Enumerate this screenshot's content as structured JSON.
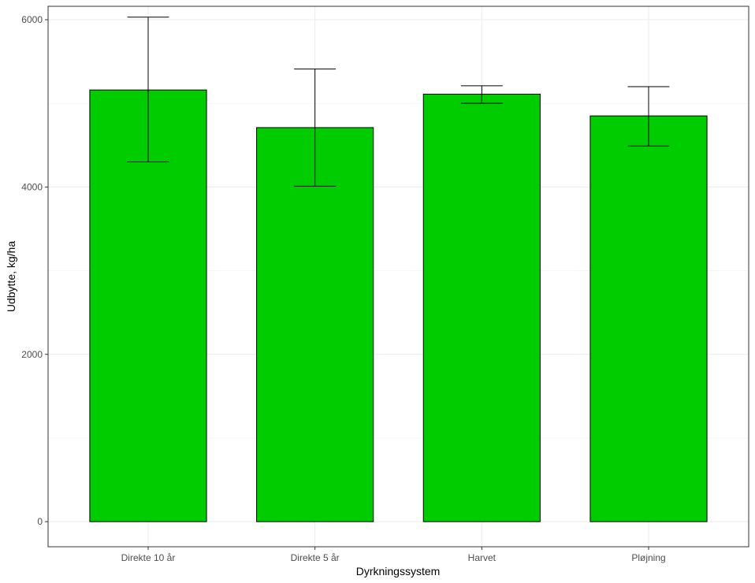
{
  "chart_data": {
    "type": "bar",
    "title": "",
    "xlabel": "Dyrkningssystem",
    "ylabel": "Udbytte, kg/ha",
    "categories": [
      "Direkte 10 år",
      "Direkte 5 år",
      "Harvet",
      "Pløjning"
    ],
    "values": [
      5160,
      4710,
      5110,
      4850
    ],
    "error_low": [
      4300,
      4010,
      5000,
      4490
    ],
    "error_high": [
      6030,
      5410,
      5210,
      5200
    ],
    "ylim": [
      -300,
      6160
    ],
    "yticks": [
      0,
      2000,
      4000,
      6000
    ],
    "ytick_labels": [
      "0",
      "2000",
      "4000",
      "6000"
    ],
    "grid": true,
    "legend": "none",
    "bar_color": "#00CC00"
  }
}
